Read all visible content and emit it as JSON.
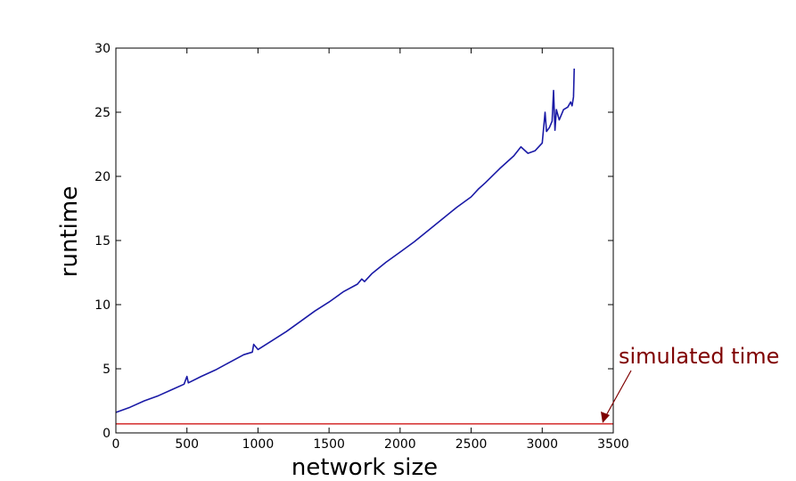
{
  "chart_data": {
    "type": "line",
    "title": "",
    "xlabel": "network size",
    "ylabel": "runtime",
    "xlim": [
      0,
      3500
    ],
    "ylim": [
      0,
      30
    ],
    "xticks": [
      "0",
      "500",
      "1000",
      "1500",
      "2000",
      "2500",
      "3000",
      "3500"
    ],
    "yticks": [
      "0",
      "5",
      "10",
      "15",
      "20",
      "25",
      "30"
    ],
    "grid": false,
    "series": [
      {
        "color": "#1a1aa6",
        "x": [
          0,
          100,
          200,
          300,
          400,
          480,
          500,
          510,
          600,
          700,
          800,
          900,
          960,
          970,
          1000,
          1100,
          1200,
          1300,
          1400,
          1500,
          1600,
          1700,
          1730,
          1750,
          1800,
          1900,
          2000,
          2100,
          2200,
          2300,
          2400,
          2500,
          2550,
          2600,
          2700,
          2800,
          2850,
          2900,
          2950,
          3000,
          3020,
          3030,
          3050,
          3070,
          3080,
          3090,
          3100,
          3120,
          3150,
          3180,
          3200,
          3210,
          3220,
          3225
        ],
        "y": [
          1.6,
          2.0,
          2.5,
          2.9,
          3.4,
          3.8,
          4.4,
          3.9,
          4.4,
          4.9,
          5.5,
          6.1,
          6.3,
          6.9,
          6.5,
          7.2,
          7.9,
          8.7,
          9.5,
          10.2,
          11.0,
          11.6,
          12.0,
          11.8,
          12.4,
          13.3,
          14.1,
          14.9,
          15.8,
          16.7,
          17.6,
          18.4,
          19.0,
          19.5,
          20.6,
          21.6,
          22.3,
          21.8,
          22.0,
          22.6,
          25.0,
          23.5,
          23.8,
          24.3,
          26.7,
          23.6,
          25.2,
          24.4,
          25.2,
          25.4,
          25.8,
          25.5,
          26.2,
          28.4
        ]
      },
      {
        "color": "#cc0000",
        "x": [
          0,
          3500
        ],
        "y": [
          0.7,
          0.7
        ]
      }
    ],
    "annotations": [
      {
        "text": "simulated time",
        "x": 3450,
        "y": 0.7,
        "color": "#7f0000"
      }
    ]
  }
}
